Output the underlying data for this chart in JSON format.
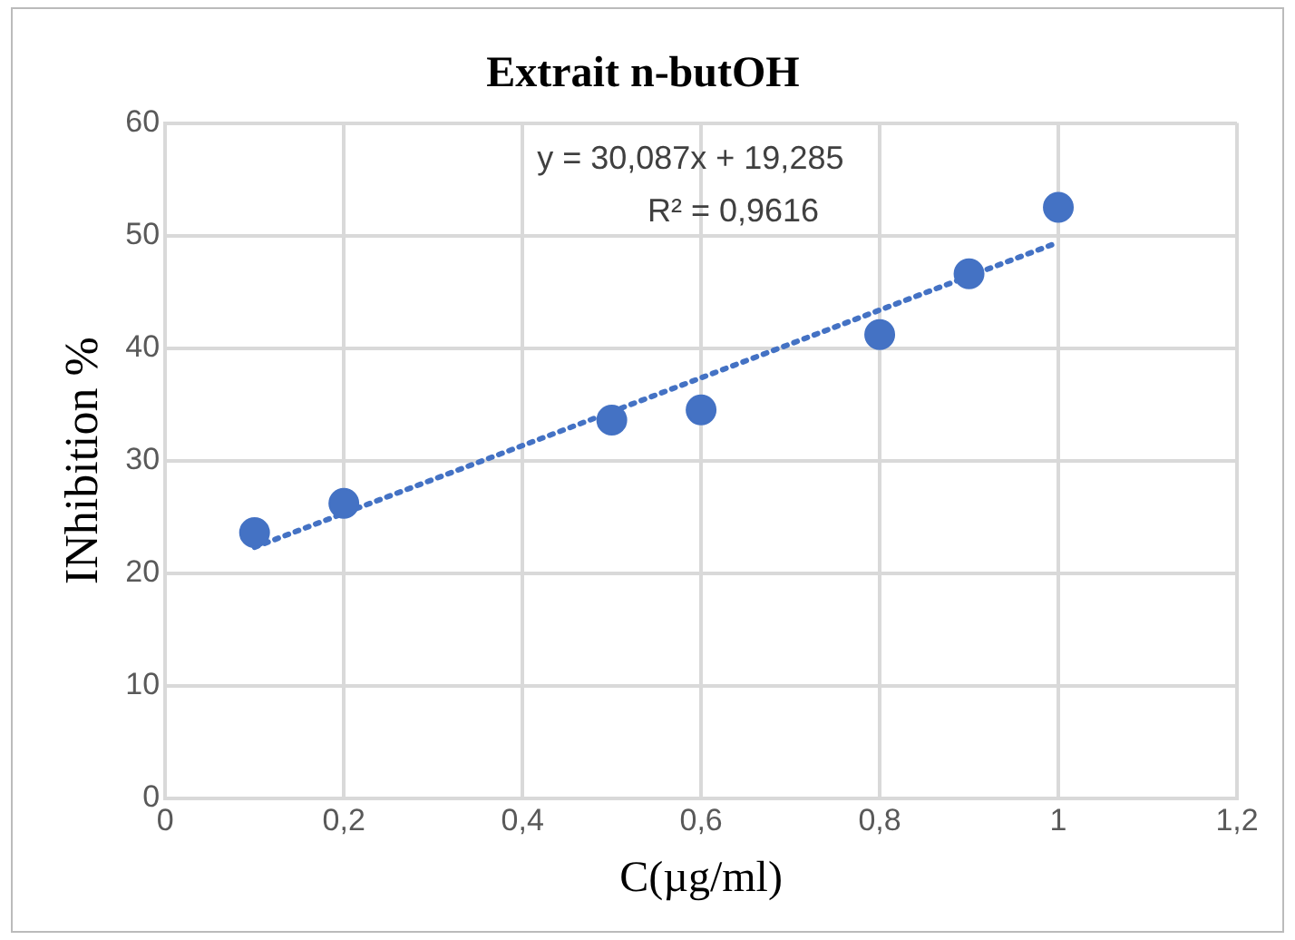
{
  "chart_data": {
    "type": "scatter",
    "title": "Extrait n-butOH",
    "xlabel": "C(µg/ml)",
    "ylabel": "INhibition %",
    "annotations": [
      "y = 30,087x + 19,285",
      "R² = 0,9616"
    ],
    "x": [
      0.1,
      0.2,
      0.5,
      0.6,
      0.8,
      0.9,
      1
    ],
    "series": [
      {
        "color": "#4472c4",
        "marker": "circle",
        "values": [
          23.6,
          26.2,
          33.6,
          34.5,
          41.2,
          46.6,
          52.5
        ]
      },
      {
        "type": "line",
        "color": "#4472c4",
        "marker": "none",
        "line_style": "dotted",
        "x": [
          0.1,
          1
        ],
        "values": [
          22.3,
          49.4
        ]
      }
    ],
    "xlim": [
      0,
      1.2
    ],
    "xticks": [
      0,
      {
        "value": 0.2,
        "label": "0,2"
      },
      {
        "value": 0.4,
        "label": "0,4"
      },
      {
        "value": 0.6,
        "label": "0,6"
      },
      {
        "value": 0.8,
        "label": "0,8"
      },
      1,
      {
        "value": 1.2,
        "label": "1,2"
      }
    ],
    "ylim": [
      0,
      60
    ],
    "yticks": [
      0,
      10,
      20,
      30,
      40,
      50,
      60
    ],
    "grid": true,
    "legend": false
  }
}
